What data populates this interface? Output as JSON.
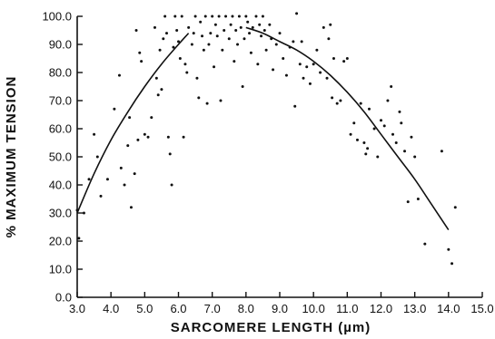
{
  "chart_data": {
    "type": "scatter",
    "title": "",
    "xlabel": "SARCOMERE LENGTH (µm)",
    "ylabel": "% MAXIMUM TENSION",
    "xlim": [
      3.0,
      15.0
    ],
    "ylim": [
      0.0,
      100.0
    ],
    "x_ticks": [
      "3.0",
      "4.0",
      "5.0",
      "6.0",
      "7.0",
      "8.0",
      "9.0",
      "10.0",
      "11.0",
      "12.0",
      "13.0",
      "14.0",
      "15.0"
    ],
    "y_ticks": [
      "0.0",
      "10.0",
      "20.0",
      "30.0",
      "40.0",
      "50.0",
      "60.0",
      "70.0",
      "80.0",
      "90.0",
      "100.0"
    ],
    "grid": false,
    "series": [
      {
        "kind": "points",
        "points": [
          [
            3.0,
            31
          ],
          [
            3.05,
            21
          ],
          [
            3.2,
            30
          ],
          [
            3.35,
            42
          ],
          [
            3.5,
            58
          ],
          [
            3.6,
            50
          ],
          [
            3.7,
            36
          ],
          [
            3.9,
            42
          ],
          [
            4.1,
            67
          ],
          [
            4.25,
            79
          ],
          [
            4.3,
            46
          ],
          [
            4.4,
            40
          ],
          [
            4.5,
            54
          ],
          [
            4.55,
            64
          ],
          [
            4.6,
            32
          ],
          [
            4.7,
            44
          ],
          [
            4.75,
            95
          ],
          [
            4.8,
            56
          ],
          [
            4.85,
            87
          ],
          [
            4.9,
            84
          ],
          [
            5.0,
            58
          ],
          [
            5.1,
            57
          ],
          [
            5.2,
            64
          ],
          [
            5.3,
            96
          ],
          [
            5.35,
            78
          ],
          [
            5.4,
            72
          ],
          [
            5.45,
            88
          ],
          [
            5.5,
            74
          ],
          [
            5.55,
            92
          ],
          [
            5.6,
            100
          ],
          [
            5.65,
            94
          ],
          [
            5.7,
            57
          ],
          [
            5.75,
            51
          ],
          [
            5.8,
            40
          ],
          [
            5.85,
            89
          ],
          [
            5.9,
            100
          ],
          [
            5.95,
            95
          ],
          [
            6.0,
            91
          ],
          [
            6.05,
            85
          ],
          [
            6.1,
            100
          ],
          [
            6.15,
            57
          ],
          [
            6.2,
            83
          ],
          [
            6.25,
            80
          ],
          [
            6.3,
            96
          ],
          [
            6.4,
            90
          ],
          [
            6.45,
            94
          ],
          [
            6.5,
            100
          ],
          [
            6.55,
            78
          ],
          [
            6.6,
            71
          ],
          [
            6.65,
            98
          ],
          [
            6.7,
            93
          ],
          [
            6.75,
            88
          ],
          [
            6.8,
            100
          ],
          [
            6.85,
            69
          ],
          [
            6.9,
            90
          ],
          [
            6.95,
            94
          ],
          [
            7.0,
            100
          ],
          [
            7.05,
            82
          ],
          [
            7.1,
            97
          ],
          [
            7.15,
            93
          ],
          [
            7.2,
            100
          ],
          [
            7.25,
            70
          ],
          [
            7.3,
            88
          ],
          [
            7.35,
            95
          ],
          [
            7.4,
            100
          ],
          [
            7.5,
            92
          ],
          [
            7.55,
            97
          ],
          [
            7.6,
            100
          ],
          [
            7.65,
            84
          ],
          [
            7.7,
            95
          ],
          [
            7.75,
            90
          ],
          [
            7.8,
            100
          ],
          [
            7.85,
            96
          ],
          [
            7.9,
            75
          ],
          [
            7.95,
            92
          ],
          [
            8.0,
            100
          ],
          [
            8.05,
            98
          ],
          [
            8.1,
            94
          ],
          [
            8.15,
            87
          ],
          [
            8.2,
            96
          ],
          [
            8.3,
            100
          ],
          [
            8.35,
            83
          ],
          [
            8.4,
            97
          ],
          [
            8.45,
            93
          ],
          [
            8.5,
            100
          ],
          [
            8.55,
            95
          ],
          [
            8.6,
            88
          ],
          [
            8.7,
            97
          ],
          [
            8.75,
            92
          ],
          [
            8.8,
            81
          ],
          [
            8.9,
            90
          ],
          [
            9.0,
            94
          ],
          [
            9.1,
            85
          ],
          [
            9.2,
            79
          ],
          [
            9.3,
            89
          ],
          [
            9.4,
            91
          ],
          [
            9.45,
            68
          ],
          [
            9.5,
            101
          ],
          [
            9.6,
            83
          ],
          [
            9.65,
            91
          ],
          [
            9.7,
            78
          ],
          [
            9.8,
            82
          ],
          [
            9.9,
            76
          ],
          [
            10.0,
            83
          ],
          [
            10.1,
            88
          ],
          [
            10.2,
            80
          ],
          [
            10.3,
            96
          ],
          [
            10.4,
            78
          ],
          [
            10.45,
            92
          ],
          [
            10.5,
            97
          ],
          [
            10.55,
            71
          ],
          [
            10.6,
            85
          ],
          [
            10.7,
            69
          ],
          [
            10.8,
            70
          ],
          [
            10.9,
            84
          ],
          [
            11.0,
            85
          ],
          [
            11.1,
            58
          ],
          [
            11.2,
            62
          ],
          [
            11.3,
            56
          ],
          [
            11.4,
            69
          ],
          [
            11.5,
            55
          ],
          [
            11.55,
            51
          ],
          [
            11.6,
            53
          ],
          [
            11.65,
            67
          ],
          [
            11.8,
            60
          ],
          [
            11.9,
            50
          ],
          [
            12.0,
            63
          ],
          [
            12.1,
            61
          ],
          [
            12.2,
            70
          ],
          [
            12.3,
            75
          ],
          [
            12.35,
            58
          ],
          [
            12.45,
            55
          ],
          [
            12.55,
            66
          ],
          [
            12.6,
            62
          ],
          [
            12.7,
            52
          ],
          [
            12.8,
            34
          ],
          [
            12.9,
            57
          ],
          [
            13.0,
            50
          ],
          [
            13.1,
            35
          ],
          [
            13.3,
            19
          ],
          [
            13.8,
            52
          ],
          [
            14.0,
            17
          ],
          [
            14.1,
            12
          ],
          [
            14.2,
            32
          ]
        ]
      },
      {
        "kind": "fit-line",
        "segments": [
          [
            [
              3.0,
              30
            ],
            [
              3.5,
              44
            ],
            [
              4.0,
              56
            ],
            [
              4.5,
              66
            ],
            [
              5.0,
              75
            ],
            [
              5.5,
              83
            ],
            [
              6.0,
              90
            ],
            [
              6.3,
              94
            ]
          ],
          [
            [
              8.0,
              96
            ],
            [
              8.5,
              94
            ],
            [
              9.0,
              91
            ],
            [
              9.5,
              88
            ],
            [
              10.0,
              84
            ],
            [
              10.5,
              79
            ],
            [
              11.0,
              73
            ],
            [
              11.5,
              66
            ],
            [
              12.0,
              58
            ],
            [
              12.5,
              50
            ],
            [
              13.0,
              42
            ],
            [
              13.5,
              33
            ],
            [
              14.0,
              24
            ]
          ]
        ]
      }
    ]
  }
}
